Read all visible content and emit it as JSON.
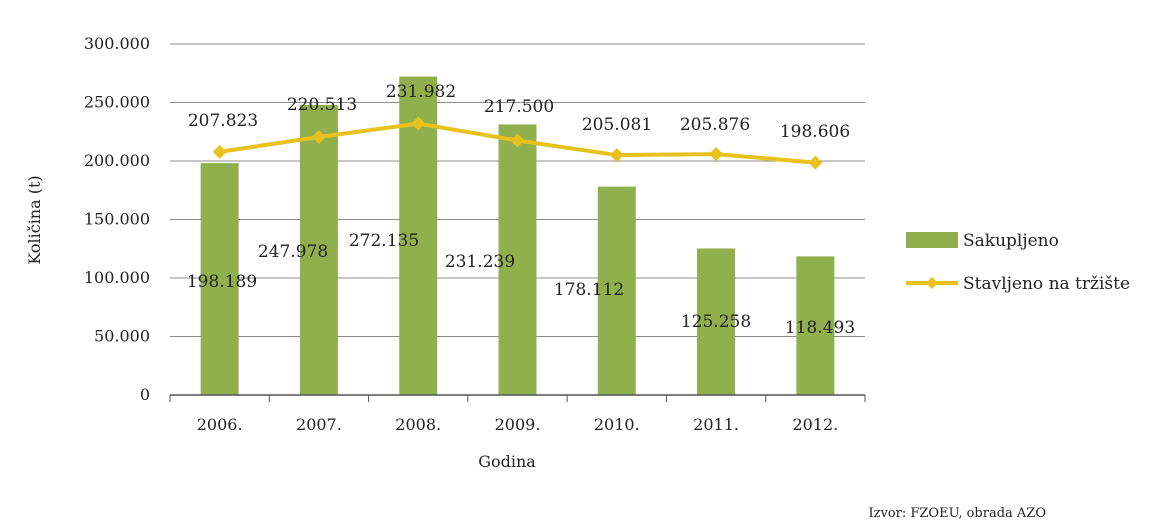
{
  "chart_data": {
    "type": "bar",
    "title": "",
    "xlabel": "Godina",
    "ylabel": "Količina (t)",
    "ylim": [
      0,
      300000
    ],
    "yticks": [
      0,
      50000,
      100000,
      150000,
      200000,
      250000,
      300000
    ],
    "ytick_labels": [
      "0",
      "50.000",
      "100.000",
      "150.000",
      "200.000",
      "250.000",
      "300.000"
    ],
    "grid": true,
    "legend_position": "right",
    "categories": [
      "2006.",
      "2007.",
      "2008.",
      "2009.",
      "2010.",
      "2011.",
      "2012."
    ],
    "series": [
      {
        "name": "Sakupljeno",
        "type": "bar",
        "color": "#8fb04c",
        "values": [
          198189,
          247978,
          272135,
          231239,
          178112,
          125258,
          118493
        ],
        "labels": [
          "198.189",
          "247.978",
          "272.135",
          "231.239",
          "178.112",
          "125.258",
          "118.493"
        ]
      },
      {
        "name": "Stavljeno na tržište",
        "type": "line",
        "color": "#e8c11c",
        "values": [
          207823,
          220513,
          231982,
          217500,
          205081,
          205876,
          198606
        ],
        "labels": [
          "207.823",
          "220.513",
          "231.982",
          "217.500",
          "205.081",
          "205.876",
          "198.606"
        ]
      }
    ],
    "source": "Izvor: FZOEU, obrada AZO"
  }
}
